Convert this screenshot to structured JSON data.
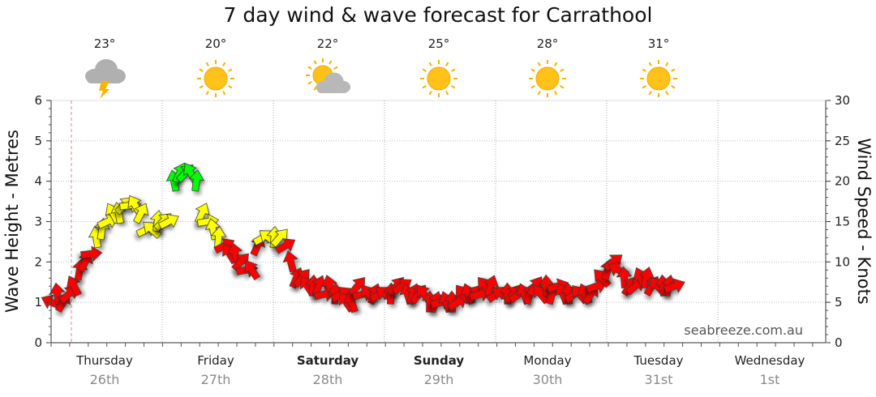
{
  "title": "7 day wind & wave forecast for Carrathool",
  "watermark": "seabreeze.com.au",
  "chart_data": {
    "type": "line",
    "title": "7 day wind & wave forecast for Carrathool",
    "ylabel_left": "Wave Height - Metres",
    "ylabel_right": "Wind Speed - Knots",
    "ylim_left": [
      0,
      6
    ],
    "ylim_right": [
      0,
      30
    ],
    "yticks_left": [
      "0",
      "1",
      "2",
      "3",
      "4",
      "5",
      "6"
    ],
    "yticks_right": [
      "0",
      "5",
      "10",
      "15",
      "20",
      "25",
      "30"
    ],
    "grid": true,
    "days": [
      {
        "name": "Thursday",
        "date": "26th",
        "bold": false
      },
      {
        "name": "Friday",
        "date": "27th",
        "bold": false
      },
      {
        "name": "Saturday",
        "date": "28th",
        "bold": true
      },
      {
        "name": "Sunday",
        "date": "29th",
        "bold": true
      },
      {
        "name": "Monday",
        "date": "30th",
        "bold": false
      },
      {
        "name": "Tuesday",
        "date": "31st",
        "bold": false
      },
      {
        "name": "Wednesday",
        "date": "1st",
        "bold": false
      }
    ],
    "weather": [
      {
        "temp": "23°",
        "icon": "storm-cloud-icon"
      },
      {
        "temp": "20°",
        "icon": "sun-icon"
      },
      {
        "temp": "22°",
        "icon": "sun-cloud-icon"
      },
      {
        "temp": "25°",
        "icon": "sun-icon"
      },
      {
        "temp": "28°",
        "icon": "sun-icon"
      },
      {
        "temp": "31°",
        "icon": "sun-icon"
      }
    ],
    "series": [
      {
        "name": "Wind Speed - Knots",
        "x_days": [
          0.0,
          0.05,
          0.1,
          0.15,
          0.2,
          0.25,
          0.3,
          0.35,
          0.4,
          0.45,
          0.5,
          0.55,
          0.6,
          0.65,
          0.7,
          0.75,
          0.8,
          0.85,
          0.9,
          0.95,
          1.0,
          1.05,
          1.1,
          1.15,
          1.2,
          1.25,
          1.3,
          1.35,
          1.4,
          1.45,
          1.5,
          1.55,
          1.6,
          1.65,
          1.7,
          1.75,
          1.8,
          1.85,
          1.9,
          1.95,
          2.0,
          2.05,
          2.1,
          2.15,
          2.2,
          2.25,
          2.3,
          2.35,
          2.4,
          2.45,
          2.5,
          2.55,
          2.6,
          2.65,
          2.7,
          2.75,
          2.8,
          2.85,
          2.9,
          2.95,
          3.0,
          3.05,
          3.1,
          3.15,
          3.2,
          3.25,
          3.3,
          3.35,
          3.4,
          3.45,
          3.5,
          3.55,
          3.6,
          3.65,
          3.7,
          3.75,
          3.8,
          3.85,
          3.9,
          3.95,
          4.0,
          4.05,
          4.1,
          4.15,
          4.2,
          4.25,
          4.3,
          4.35,
          4.4,
          4.45,
          4.5,
          4.55,
          4.6,
          4.65,
          4.7,
          4.75,
          4.8,
          4.85,
          4.9,
          4.95,
          5.0,
          5.05,
          5.1,
          5.15,
          5.2,
          5.25,
          5.3,
          5.35,
          5.4,
          5.45,
          5.5,
          5.55,
          5.6
        ],
        "knots": [
          5,
          6,
          5,
          6,
          7,
          9,
          10,
          11,
          13,
          14,
          15,
          16,
          16,
          17,
          17,
          17,
          16,
          14,
          14,
          15,
          15,
          15,
          20,
          21,
          21,
          21,
          20,
          16,
          15,
          14,
          13,
          12,
          11,
          11,
          10,
          9,
          9,
          12,
          13,
          13,
          13,
          13,
          12,
          10,
          8,
          8,
          7,
          7,
          7,
          6,
          7,
          6,
          6,
          5,
          5,
          7,
          6,
          6,
          6,
          6,
          6,
          6,
          7,
          7,
          6,
          6,
          6,
          6,
          5,
          5,
          5,
          5,
          5,
          5,
          6,
          6,
          6,
          6,
          7,
          7,
          6,
          6,
          6,
          6,
          6,
          6,
          6,
          7,
          6,
          7,
          6,
          7,
          6,
          6,
          6,
          6,
          6,
          6,
          7,
          8,
          9,
          10,
          9,
          8,
          7,
          7,
          8,
          8,
          7,
          7,
          7,
          7,
          7
        ]
      }
    ],
    "color_scale": [
      {
        "max_knots": 12,
        "color": "#ff0000"
      },
      {
        "max_knots": 18,
        "color": "#ffff00"
      },
      {
        "max_knots": 30,
        "color": "#00ff00"
      }
    ]
  }
}
